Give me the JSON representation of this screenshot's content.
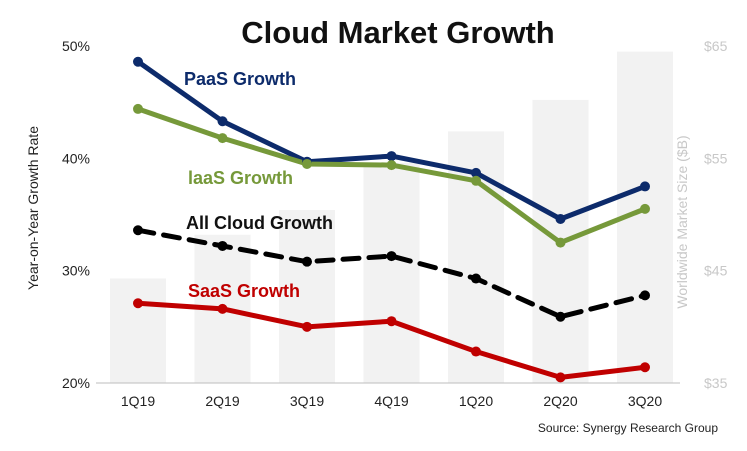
{
  "chart_data": {
    "type": "line",
    "title": "Cloud Market Growth",
    "categories": [
      "1Q19",
      "2Q19",
      "3Q19",
      "4Q19",
      "1Q20",
      "2Q20",
      "3Q20"
    ],
    "y_axis": {
      "label": "Year-on-Year Growth Rate",
      "range": [
        20,
        50
      ],
      "ticks": [
        {
          "value": 20,
          "label": "20%"
        },
        {
          "value": 30,
          "label": "30%"
        },
        {
          "value": 40,
          "label": "40%"
        },
        {
          "value": 50,
          "label": "50%"
        }
      ]
    },
    "y2_axis": {
      "label": "Worldwide Market Size ($B)",
      "range": [
        35,
        65
      ],
      "ticks": [
        {
          "value": 35,
          "label": "$35"
        },
        {
          "value": 45,
          "label": "$45"
        },
        {
          "value": 55,
          "label": "$55"
        },
        {
          "value": 65,
          "label": "$65"
        }
      ]
    },
    "bars": {
      "name": "Worldwide Market Size",
      "axis": "y2",
      "color": "#f2f2f2",
      "values": [
        44.3,
        48.2,
        50.4,
        54.6,
        57.4,
        60.2,
        64.5
      ]
    },
    "series": [
      {
        "name": "PaaS Growth",
        "color": "#0d2b6b",
        "dashed": false,
        "values": [
          48.6,
          43.3,
          39.7,
          40.2,
          38.7,
          34.6,
          37.5
        ]
      },
      {
        "name": "IaaS Growth",
        "color": "#76993a",
        "dashed": false,
        "values": [
          44.4,
          41.8,
          39.5,
          39.4,
          38.0,
          32.5,
          35.5
        ]
      },
      {
        "name": "All Cloud Growth",
        "color": "#000000",
        "dashed": true,
        "values": [
          33.6,
          32.2,
          30.8,
          31.3,
          29.3,
          25.9,
          27.8
        ]
      },
      {
        "name": "SaaS Growth",
        "color": "#c00000",
        "dashed": false,
        "values": [
          27.1,
          26.6,
          25.0,
          25.5,
          22.8,
          20.5,
          21.4
        ]
      }
    ],
    "series_labels": [
      "PaaS Growth",
      "laaS Growth",
      "All Cloud Growth",
      "SaaS Growth"
    ],
    "legend": "inline labels next to lines",
    "grid": false
  },
  "source": "Source: Synergy Research Group"
}
